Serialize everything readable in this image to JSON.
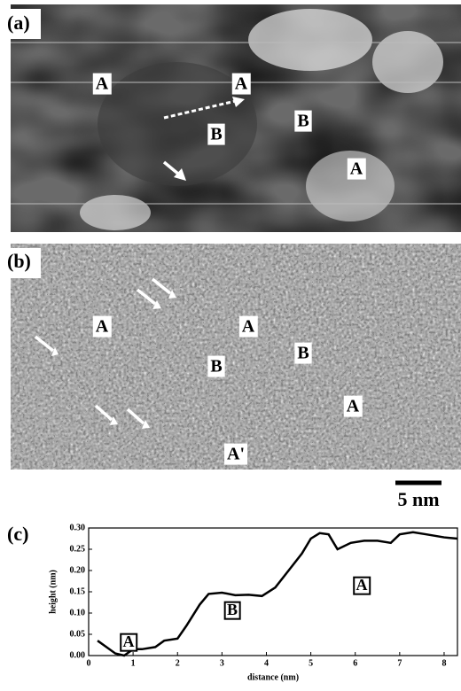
{
  "panel_a": {
    "label": "(a)",
    "marks": [
      "A",
      "A",
      "B",
      "B",
      "A"
    ]
  },
  "panel_b": {
    "label": "(b)",
    "marks": [
      "A",
      "A",
      "B",
      "B",
      "A",
      "A'"
    ]
  },
  "scale_bar": "5 nm",
  "chart_data": {
    "type": "line",
    "panel_label": "(c)",
    "xlabel": "distance (nm)",
    "ylabel": "height (nm)",
    "x": [
      0.2,
      0.4,
      0.6,
      0.8,
      1.0,
      1.2,
      1.5,
      1.7,
      2.0,
      2.2,
      2.5,
      2.7,
      3.0,
      3.3,
      3.6,
      3.9,
      4.2,
      4.5,
      4.8,
      5.0,
      5.2,
      5.4,
      5.6,
      5.9,
      6.2,
      6.5,
      6.8,
      7.0,
      7.3,
      7.6,
      8.0,
      8.3
    ],
    "values": [
      0.035,
      0.02,
      0.005,
      0.0,
      0.015,
      0.015,
      0.02,
      0.035,
      0.04,
      0.07,
      0.12,
      0.145,
      0.148,
      0.142,
      0.143,
      0.14,
      0.16,
      0.2,
      0.24,
      0.275,
      0.288,
      0.285,
      0.25,
      0.265,
      0.27,
      0.27,
      0.265,
      0.285,
      0.29,
      0.285,
      0.278,
      0.275
    ],
    "color": "#000000",
    "xlim": [
      0,
      8.3
    ],
    "xticks": [
      0,
      1,
      2,
      3,
      4,
      5,
      6,
      7,
      8
    ],
    "ylim": [
      0,
      0.3
    ],
    "yticks": [
      {
        "value": 0,
        "label": "0.00"
      },
      {
        "value": 0.05,
        "label": "0.05"
      },
      {
        "value": 0.1,
        "label": "0.10"
      },
      {
        "value": 0.15,
        "label": "0.15"
      },
      {
        "value": 0.2,
        "label": "0.20"
      },
      {
        "value": 0.25,
        "label": "0.25"
      },
      {
        "value": 0.3,
        "label": "0.30"
      }
    ],
    "annotations": [
      "A",
      "B",
      "A"
    ]
  }
}
